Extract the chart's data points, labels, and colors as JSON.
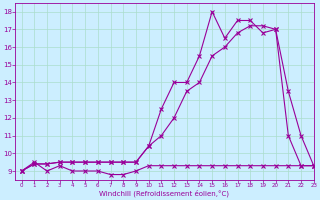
{
  "xlabel": "Windchill (Refroidissement éolien,°C)",
  "bg_color": "#cceeff",
  "line_color": "#990099",
  "grid_color": "#aaddcc",
  "xlim": [
    -0.5,
    23
  ],
  "ylim": [
    8.5,
    18.5
  ],
  "xticks": [
    0,
    1,
    2,
    3,
    4,
    5,
    6,
    7,
    8,
    9,
    10,
    11,
    12,
    13,
    14,
    15,
    16,
    17,
    18,
    19,
    20,
    21,
    22,
    23
  ],
  "yticks": [
    9,
    10,
    11,
    12,
    13,
    14,
    15,
    16,
    17,
    18
  ],
  "curve1_x": [
    0,
    1,
    2,
    3,
    4,
    5,
    6,
    7,
    8,
    9,
    10,
    11,
    12,
    13,
    14,
    15,
    16,
    17,
    18,
    19,
    20,
    21,
    22,
    23
  ],
  "curve1_y": [
    9,
    9.4,
    9.4,
    9.5,
    9.5,
    9.5,
    9.5,
    9.5,
    9.5,
    9.5,
    10.4,
    11.0,
    12.0,
    13.5,
    14.0,
    15.5,
    16.0,
    16.8,
    17.2,
    17.2,
    17.0,
    13.5,
    11.0,
    9.3
  ],
  "curve2_x": [
    0,
    1,
    2,
    3,
    4,
    5,
    6,
    7,
    8,
    9,
    10,
    11,
    12,
    13,
    14,
    15,
    16,
    17,
    18,
    19,
    20,
    21,
    22,
    23
  ],
  "curve2_y": [
    9,
    9.4,
    9.4,
    9.5,
    9.5,
    9.5,
    9.5,
    9.5,
    9.5,
    9.5,
    10.4,
    12.5,
    14.0,
    14.0,
    15.5,
    18.0,
    16.5,
    17.5,
    17.5,
    16.8,
    17.0,
    11.0,
    9.3,
    9.3
  ],
  "curve3_x": [
    0,
    1,
    2,
    3,
    4,
    5,
    6,
    7,
    8,
    9,
    10,
    11,
    12,
    13,
    14,
    15,
    16,
    17,
    18,
    19,
    20,
    21,
    22,
    23
  ],
  "curve3_y": [
    9,
    9.5,
    9.0,
    9.3,
    9.0,
    9.0,
    9.0,
    8.8,
    8.8,
    9.0,
    9.3,
    9.3,
    9.3,
    9.3,
    9.3,
    9.3,
    9.3,
    9.3,
    9.3,
    9.3,
    9.3,
    9.3,
    9.3,
    9.3
  ]
}
